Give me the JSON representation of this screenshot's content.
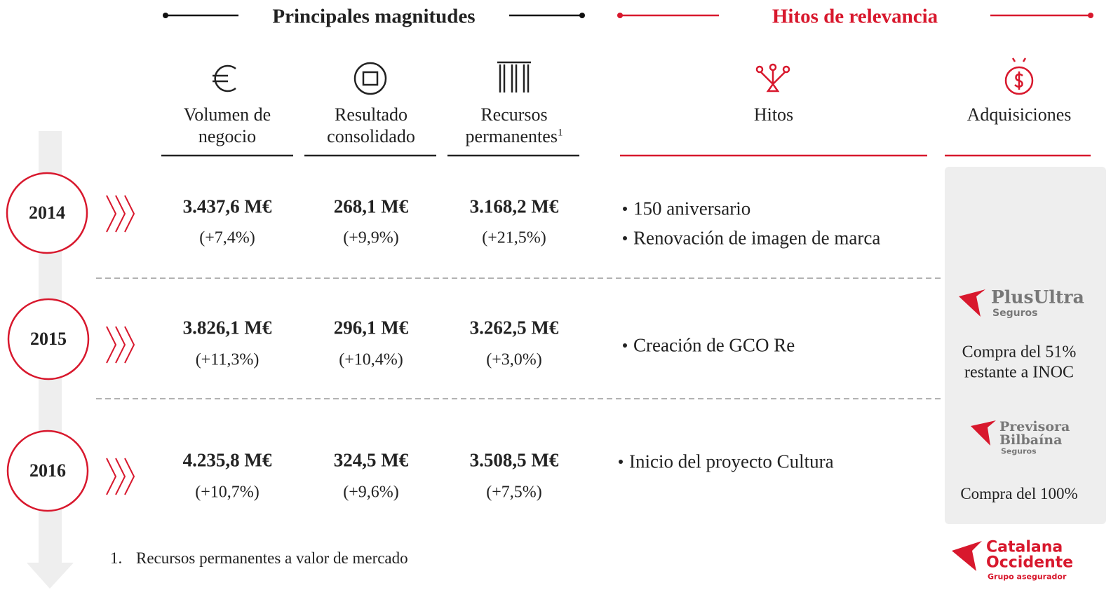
{
  "sections": {
    "left": "Principales magnitudes",
    "right": "Hitos de relevancia"
  },
  "columns": [
    {
      "label": [
        "Volumen de",
        "negocio"
      ]
    },
    {
      "label": [
        "Resultado",
        "consolidado"
      ]
    },
    {
      "label": [
        "Recursos",
        "permanentes"
      ],
      "superscript": "1"
    },
    {
      "label": [
        "Hitos"
      ]
    },
    {
      "label": [
        "Adquisiciones"
      ]
    }
  ],
  "rows": [
    {
      "year": "2014",
      "values": [
        "3.437,6 M€",
        "268,1 M€",
        "3.168,2 M€"
      ],
      "changes": [
        "(+7,4%)",
        "(+9,9%)",
        "(+21,5%)"
      ],
      "hitos": [
        "150 aniversario",
        "Renovación de imagen de marca"
      ]
    },
    {
      "year": "2015",
      "values": [
        "3.826,1 M€",
        "296,1 M€",
        "3.262,5 M€"
      ],
      "changes": [
        "(+11,3%)",
        "(+10,4%)",
        "(+3,0%)"
      ],
      "hitos": [
        "Creación de GCO Re"
      ],
      "acquisition": {
        "logo": [
          "PlusUltra",
          "Seguros"
        ],
        "caption": [
          "Compra del 51%",
          "restante a INOC"
        ]
      }
    },
    {
      "year": "2016",
      "values": [
        "4.235,8 M€",
        "324,5 M€",
        "3.508,5 M€"
      ],
      "changes": [
        "(+10,7%)",
        "(+9,6%)",
        "(+7,5%)"
      ],
      "hitos": [
        "Inicio del proyecto Cultura"
      ],
      "acquisition": {
        "logo": [
          "Previsora",
          "Bilbaína",
          "Seguros"
        ],
        "caption": [
          "Compra del 100%"
        ]
      }
    }
  ],
  "footnote": {
    "number": "1.",
    "text": "Recursos permanentes a valor de mercado"
  },
  "brand": [
    "Catalana",
    "Occidente",
    "Grupo asegurador"
  ]
}
